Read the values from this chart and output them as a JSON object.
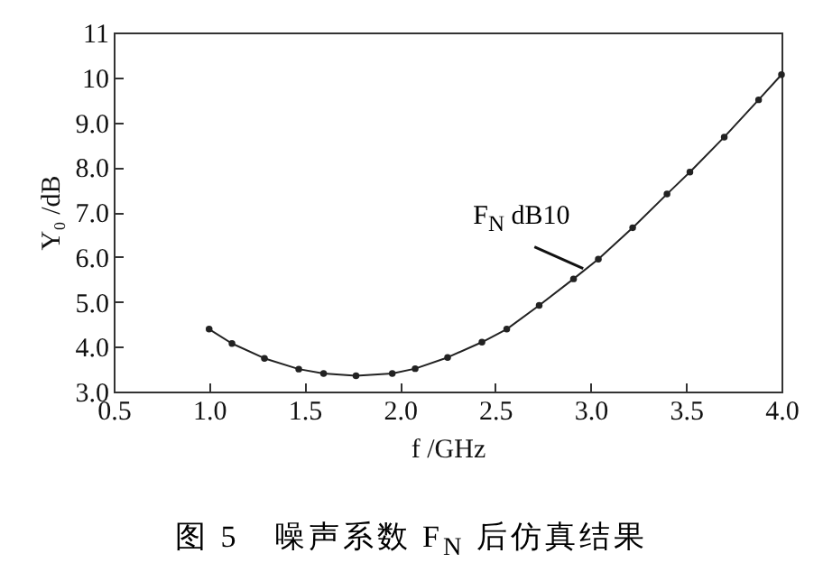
{
  "chart_data": {
    "type": "line",
    "title": "图 5　噪声系数 F$_{N}$ 后仿真结果",
    "xlabel": "f /GHz",
    "ylabel": "Y₀ /dB",
    "x": [
      1.0,
      1.12,
      1.29,
      1.47,
      1.6,
      1.77,
      1.96,
      2.08,
      2.25,
      2.43,
      2.56,
      2.73,
      2.91,
      3.04,
      3.22,
      3.4,
      3.52,
      3.7,
      3.88,
      4.0
    ],
    "series": [
      {
        "color": "#222222",
        "values": [
          4.39,
          4.07,
          3.74,
          3.5,
          3.4,
          3.35,
          3.4,
          3.51,
          3.76,
          4.1,
          4.39,
          4.92,
          5.51,
          5.95,
          6.65,
          7.4,
          7.89,
          8.67,
          9.5,
          10.06
        ]
      }
    ],
    "xlim": [
      0.5,
      4.0
    ],
    "ylim": [
      3.0,
      11
    ],
    "xticks": [
      {
        "value": 0.5,
        "label": "0.5"
      },
      {
        "value": 1,
        "label": "1.0"
      },
      {
        "value": 1.5,
        "label": "1.5"
      },
      {
        "value": 2,
        "label": "2.0"
      },
      {
        "value": 2.5,
        "label": "2.5"
      },
      {
        "value": 3,
        "label": "3.0"
      },
      {
        "value": 3.5,
        "label": "3.5"
      },
      {
        "value": 4,
        "label": "4.0"
      }
    ],
    "yticks": [
      {
        "value": 3,
        "label": "3.0"
      },
      {
        "value": 4,
        "label": "4.0"
      },
      {
        "value": 5,
        "label": "5.0"
      },
      {
        "value": 6,
        "label": "6.0"
      },
      {
        "value": 7,
        "label": "7.0"
      },
      {
        "value": 8,
        "label": "8.0"
      },
      {
        "value": 9,
        "label": "9.0"
      },
      {
        "value": 10,
        "label": "10"
      },
      {
        "value": 11,
        "label": "11"
      }
    ],
    "annotations": [
      {
        "text": "F$_{N}$ dB10",
        "x": 2.97,
        "y": 5.7
      }
    ],
    "marker": "circle",
    "line_style": "solid",
    "grid": false
  }
}
